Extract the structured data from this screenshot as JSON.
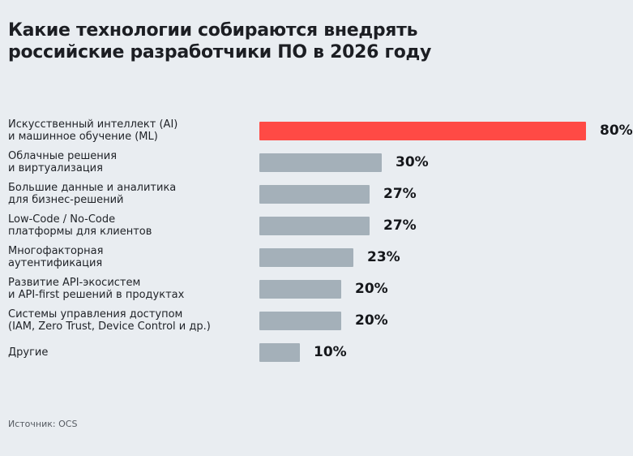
{
  "title_lines": [
    "Какие технологии собираются внедрять",
    "российские разработчики ПО в 2026 году"
  ],
  "source": "Источник: OCS",
  "colors": {
    "highlight": "#ff4a45",
    "default": "#a4b0b9",
    "background": "#e9edf1"
  },
  "chart_data": {
    "type": "bar",
    "orientation": "horizontal",
    "title": "Какие технологии собираются внедрять российские разработчики ПО в 2026 году",
    "categories": [
      [
        "Искусственный интеллект (AI)",
        "и машинное обучение (ML)"
      ],
      [
        "Облачные решения",
        "и виртуализация"
      ],
      [
        "Большие данные и аналитика",
        "для бизнес-решений"
      ],
      [
        "Low-Code / No-Code",
        "платформы для клиентов"
      ],
      [
        "Многофакторная",
        "аутентификация"
      ],
      [
        "Развитие API-экосистем",
        "и API-first решений в продуктах"
      ],
      [
        "Системы управления доступом",
        "(IAM, Zero Trust, Device Control и др.)"
      ],
      [
        "Другие"
      ]
    ],
    "values": [
      80,
      30,
      27,
      27,
      23,
      20,
      20,
      10
    ],
    "value_labels": [
      "80%",
      "30%",
      "27%",
      "27%",
      "23%",
      "20%",
      "20%",
      "10%"
    ],
    "unit": "%",
    "highlight_index": 0,
    "xlim": [
      0,
      80
    ],
    "grid": false,
    "legend": "none"
  }
}
